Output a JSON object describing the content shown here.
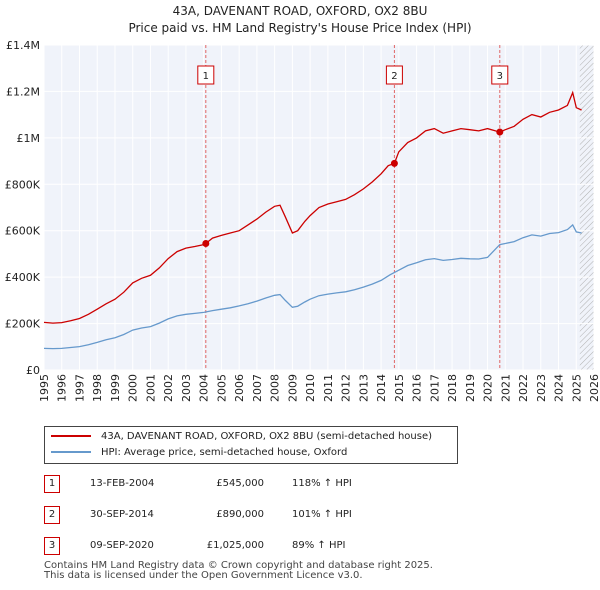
{
  "header": {
    "title_line1": "43A, DAVENANT ROAD, OXFORD, OX2 8BU",
    "title_line2": "Price paid vs. HM Land Registry's House Price Index (HPI)"
  },
  "chart_data": {
    "type": "line",
    "xlim": [
      1995,
      2026
    ],
    "ylim": [
      0,
      1400000
    ],
    "y_ticks": [
      {
        "value": 0,
        "label": "£0"
      },
      {
        "value": 200000,
        "label": "£200K"
      },
      {
        "value": 400000,
        "label": "£400K"
      },
      {
        "value": 600000,
        "label": "£600K"
      },
      {
        "value": 800000,
        "label": "£800K"
      },
      {
        "value": 1000000,
        "label": "£1M"
      },
      {
        "value": 1200000,
        "label": "£1.2M"
      },
      {
        "value": 1400000,
        "label": "£1.4M"
      }
    ],
    "x_ticks": [
      "1995",
      "1996",
      "1997",
      "1998",
      "1999",
      "2000",
      "2001",
      "2002",
      "2003",
      "2004",
      "2005",
      "2006",
      "2007",
      "2008",
      "2009",
      "2010",
      "2011",
      "2012",
      "2013",
      "2014",
      "2015",
      "2016",
      "2017",
      "2018",
      "2019",
      "2020",
      "2021",
      "2022",
      "2023",
      "2024",
      "2025",
      "2026"
    ],
    "forecast_start": 2025.2,
    "series": [
      {
        "name": "43A, DAVENANT ROAD, OXFORD, OX2 8BU (semi-detached house)",
        "color": "#cc0000",
        "points": [
          [
            1995.0,
            205000
          ],
          [
            1995.5,
            202000
          ],
          [
            1996.0,
            204000
          ],
          [
            1996.5,
            212000
          ],
          [
            1997.0,
            222000
          ],
          [
            1997.5,
            240000
          ],
          [
            1998.0,
            262000
          ],
          [
            1998.5,
            285000
          ],
          [
            1999.0,
            305000
          ],
          [
            1999.5,
            335000
          ],
          [
            2000.0,
            375000
          ],
          [
            2000.5,
            395000
          ],
          [
            2001.0,
            408000
          ],
          [
            2001.5,
            440000
          ],
          [
            2002.0,
            480000
          ],
          [
            2002.5,
            510000
          ],
          [
            2003.0,
            525000
          ],
          [
            2003.5,
            532000
          ],
          [
            2004.0,
            540000
          ],
          [
            2004.12,
            545000
          ],
          [
            2004.5,
            568000
          ],
          [
            2005.0,
            580000
          ],
          [
            2005.5,
            590000
          ],
          [
            2006.0,
            600000
          ],
          [
            2006.5,
            625000
          ],
          [
            2007.0,
            650000
          ],
          [
            2007.5,
            680000
          ],
          [
            2008.0,
            705000
          ],
          [
            2008.3,
            710000
          ],
          [
            2008.6,
            660000
          ],
          [
            2009.0,
            590000
          ],
          [
            2009.3,
            600000
          ],
          [
            2009.7,
            640000
          ],
          [
            2010.0,
            665000
          ],
          [
            2010.5,
            700000
          ],
          [
            2011.0,
            715000
          ],
          [
            2011.5,
            725000
          ],
          [
            2012.0,
            735000
          ],
          [
            2012.5,
            755000
          ],
          [
            2013.0,
            780000
          ],
          [
            2013.5,
            810000
          ],
          [
            2014.0,
            845000
          ],
          [
            2014.4,
            880000
          ],
          [
            2014.75,
            890000
          ],
          [
            2015.0,
            940000
          ],
          [
            2015.5,
            980000
          ],
          [
            2016.0,
            1000000
          ],
          [
            2016.5,
            1030000
          ],
          [
            2017.0,
            1040000
          ],
          [
            2017.5,
            1020000
          ],
          [
            2018.0,
            1030000
          ],
          [
            2018.5,
            1040000
          ],
          [
            2019.0,
            1035000
          ],
          [
            2019.5,
            1030000
          ],
          [
            2020.0,
            1040000
          ],
          [
            2020.69,
            1025000
          ],
          [
            2021.0,
            1035000
          ],
          [
            2021.5,
            1050000
          ],
          [
            2022.0,
            1080000
          ],
          [
            2022.5,
            1100000
          ],
          [
            2023.0,
            1090000
          ],
          [
            2023.5,
            1110000
          ],
          [
            2024.0,
            1120000
          ],
          [
            2024.5,
            1140000
          ],
          [
            2024.8,
            1195000
          ],
          [
            2025.0,
            1130000
          ],
          [
            2025.3,
            1120000
          ]
        ]
      },
      {
        "name": "HPI: Average price, semi-detached house, Oxford",
        "color": "#6699cc",
        "points": [
          [
            1995.0,
            93000
          ],
          [
            1995.5,
            92000
          ],
          [
            1996.0,
            93000
          ],
          [
            1996.5,
            97000
          ],
          [
            1997.0,
            101000
          ],
          [
            1997.5,
            109000
          ],
          [
            1998.0,
            119000
          ],
          [
            1998.5,
            130000
          ],
          [
            1999.0,
            139000
          ],
          [
            1999.5,
            153000
          ],
          [
            2000.0,
            172000
          ],
          [
            2000.5,
            181000
          ],
          [
            2001.0,
            187000
          ],
          [
            2001.5,
            202000
          ],
          [
            2002.0,
            220000
          ],
          [
            2002.5,
            233000
          ],
          [
            2003.0,
            240000
          ],
          [
            2003.5,
            244000
          ],
          [
            2004.0,
            248000
          ],
          [
            2004.5,
            256000
          ],
          [
            2005.0,
            262000
          ],
          [
            2005.5,
            268000
          ],
          [
            2006.0,
            276000
          ],
          [
            2006.5,
            285000
          ],
          [
            2007.0,
            297000
          ],
          [
            2007.5,
            310000
          ],
          [
            2008.0,
            322000
          ],
          [
            2008.3,
            325000
          ],
          [
            2008.6,
            300000
          ],
          [
            2009.0,
            270000
          ],
          [
            2009.3,
            275000
          ],
          [
            2009.7,
            293000
          ],
          [
            2010.0,
            305000
          ],
          [
            2010.5,
            320000
          ],
          [
            2011.0,
            327000
          ],
          [
            2011.5,
            332000
          ],
          [
            2012.0,
            337000
          ],
          [
            2012.5,
            346000
          ],
          [
            2013.0,
            357000
          ],
          [
            2013.5,
            370000
          ],
          [
            2014.0,
            386000
          ],
          [
            2014.5,
            410000
          ],
          [
            2015.0,
            430000
          ],
          [
            2015.5,
            450000
          ],
          [
            2016.0,
            462000
          ],
          [
            2016.5,
            475000
          ],
          [
            2017.0,
            480000
          ],
          [
            2017.5,
            472000
          ],
          [
            2018.0,
            476000
          ],
          [
            2018.5,
            481000
          ],
          [
            2019.0,
            479000
          ],
          [
            2019.5,
            478000
          ],
          [
            2020.0,
            485000
          ],
          [
            2020.69,
            540000
          ],
          [
            2021.0,
            545000
          ],
          [
            2021.5,
            553000
          ],
          [
            2022.0,
            570000
          ],
          [
            2022.5,
            582000
          ],
          [
            2023.0,
            577000
          ],
          [
            2023.5,
            588000
          ],
          [
            2024.0,
            592000
          ],
          [
            2024.5,
            605000
          ],
          [
            2024.8,
            625000
          ],
          [
            2025.0,
            595000
          ],
          [
            2025.3,
            590000
          ]
        ]
      }
    ],
    "markers": [
      {
        "label": "1",
        "x": 2004.12,
        "value": 545000
      },
      {
        "label": "2",
        "x": 2014.75,
        "value": 890000
      },
      {
        "label": "3",
        "x": 2020.69,
        "value": 1025000
      }
    ]
  },
  "legend": {
    "items": [
      {
        "label": "43A, DAVENANT ROAD, OXFORD, OX2 8BU (semi-detached house)",
        "color": "#cc0000"
      },
      {
        "label": "HPI: Average price, semi-detached house, Oxford",
        "color": "#6699cc"
      }
    ]
  },
  "transactions": [
    {
      "num": "1",
      "date": "13-FEB-2004",
      "price": "£545,000",
      "hpi": "118% ↑ HPI"
    },
    {
      "num": "2",
      "date": "30-SEP-2014",
      "price": "£890,000",
      "hpi": "101% ↑ HPI"
    },
    {
      "num": "3",
      "date": "09-SEP-2020",
      "price": "£1,025,000",
      "hpi": "89% ↑ HPI"
    }
  ],
  "footer": {
    "line1": "Contains HM Land Registry data © Crown copyright and database right 2025.",
    "line2": "This data is licensed under the Open Government Licence v3.0."
  }
}
